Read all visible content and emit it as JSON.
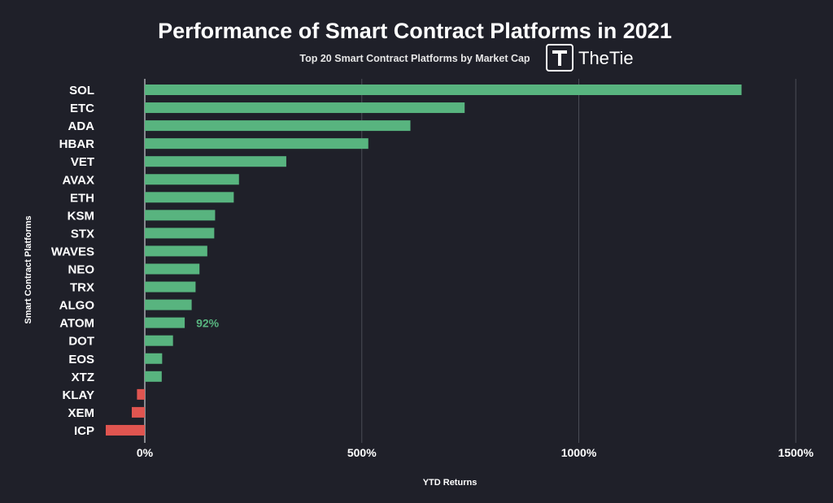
{
  "chart_data": {
    "type": "bar",
    "orientation": "horizontal",
    "title": "Performance of Smart Contract Platforms in 2021",
    "subtitle": "Top 20 Smart Contract Platforms by Market Cap",
    "brand": "TheTie",
    "xlabel": "YTD Returns",
    "ylabel": "Smart Contract Platforms",
    "xlim": [
      -100,
      1500
    ],
    "xticks": [
      0,
      500,
      1000,
      1500
    ],
    "xtick_labels": [
      "0%",
      "500%",
      "1000%",
      "1500%"
    ],
    "grid": "vertical",
    "categories": [
      "SOL",
      "ETC",
      "ADA",
      "HBAR",
      "VET",
      "AVAX",
      "ETH",
      "KSM",
      "STX",
      "WAVES",
      "NEO",
      "TRX",
      "ALGO",
      "ATOM",
      "DOT",
      "EOS",
      "XTZ",
      "KLAY",
      "XEM",
      "ICP"
    ],
    "values": [
      1375,
      737,
      612,
      515,
      326,
      217,
      205,
      162,
      160,
      144,
      126,
      117,
      108,
      92,
      65,
      40,
      39,
      -18,
      -30,
      -90
    ],
    "annotations": [
      {
        "category": "ATOM",
        "text": "92%"
      }
    ],
    "colors": {
      "positive": "#58b47f",
      "negative": "#e05550",
      "background": "#1f2029",
      "grid": "#4a4c56",
      "annotation": "#58b47f"
    }
  }
}
